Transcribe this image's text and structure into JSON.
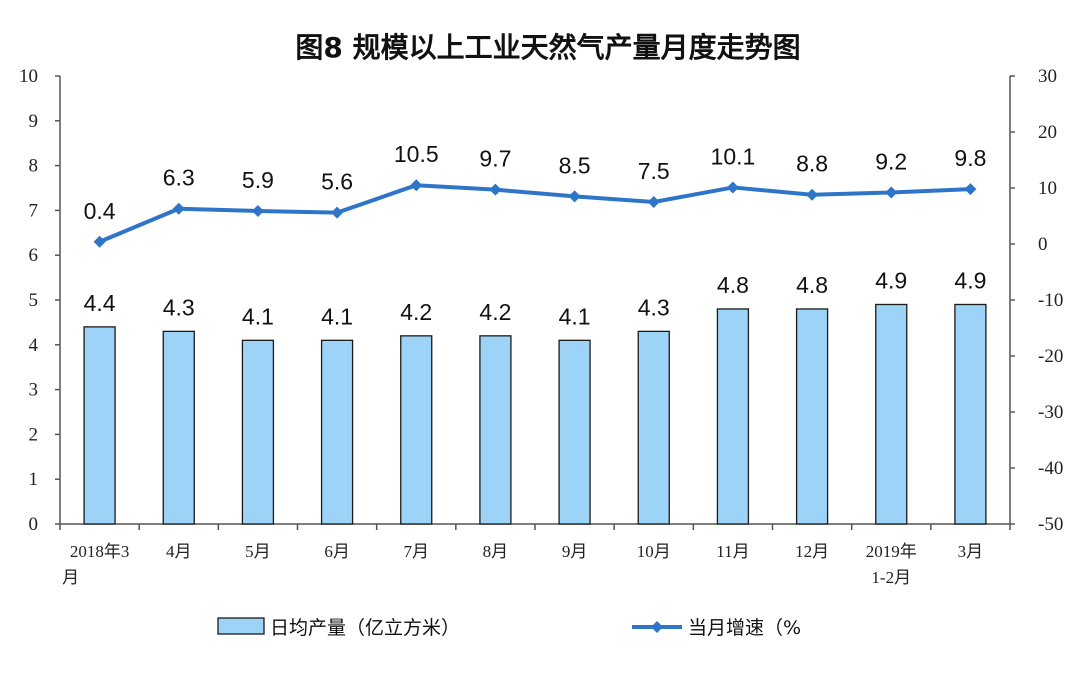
{
  "chart_data": {
    "type": "bar",
    "title": "图8  规模以上工业天然气产量月度走势图",
    "categories": [
      [
        "2018年3",
        "月"
      ],
      [
        "4月"
      ],
      [
        "5月"
      ],
      [
        "6月"
      ],
      [
        "7月"
      ],
      [
        "8月"
      ],
      [
        "9月"
      ],
      [
        "10月"
      ],
      [
        "11月"
      ],
      [
        "12月"
      ],
      [
        "2019年",
        "1-2月"
      ],
      [
        "3月"
      ]
    ],
    "series": [
      {
        "name": "日均产量（亿立方米）",
        "type": "bar",
        "axis": "left",
        "values": [
          4.4,
          4.3,
          4.1,
          4.1,
          4.2,
          4.2,
          4.1,
          4.3,
          4.8,
          4.8,
          4.9,
          4.9
        ],
        "color": "#9dd3f7",
        "border": "#1a1a1a"
      },
      {
        "name": "当月增速（%",
        "type": "line",
        "axis": "right",
        "values": [
          0.4,
          6.3,
          5.9,
          5.6,
          10.5,
          9.7,
          8.5,
          7.5,
          10.1,
          8.8,
          9.2,
          9.8
        ],
        "color": "#2e75c9"
      }
    ],
    "y_left": {
      "min": 0,
      "max": 10,
      "ticks": [
        "0",
        "1",
        "2",
        "3",
        "4",
        "5",
        "6",
        "7",
        "8",
        "9",
        "10"
      ]
    },
    "y_right": {
      "min": -50,
      "max": 30,
      "ticks": [
        "-50",
        "-40",
        "-30",
        "-20",
        "-10",
        "0",
        "10",
        "20",
        "30"
      ]
    },
    "grid": false,
    "legend": "bottom"
  }
}
